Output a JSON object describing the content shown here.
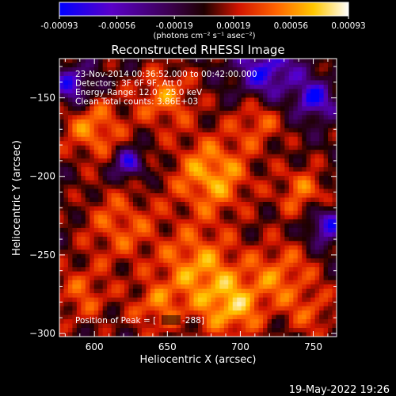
{
  "chart_data": {
    "type": "heatmap",
    "title": "Reconstructed RHESSI Image",
    "xlabel": "Heliocentric X (arcsec)",
    "ylabel": "Heliocentric Y (arcsec)",
    "xlim": [
      576,
      766
    ],
    "ylim": [
      -302,
      -125
    ],
    "x_ticks": [
      600,
      650,
      700,
      750
    ],
    "y_ticks": [
      -150,
      -200,
      -250,
      -300
    ],
    "x_tick_labels": [
      "600",
      "650",
      "700",
      "750"
    ],
    "y_tick_labels": [
      "−150",
      "−200",
      "−250",
      "−300"
    ],
    "colorbar": {
      "min": -0.00093,
      "max": 0.00093,
      "tick_values": [
        -0.00093,
        -0.00056,
        -0.00019,
        0.00019,
        0.00056,
        0.00093
      ],
      "tick_labels": [
        "-0.00093",
        "-0.00056",
        "-0.00019",
        "0.00019",
        "0.00056",
        "0.00093"
      ],
      "units_label": "(photons cm⁻² s⁻¹ asec⁻²)",
      "colormap": [
        "#0000ff",
        "#5a00c8",
        "#3c0050",
        "#1e0000",
        "#d21400",
        "#ff6400",
        "#ffc800",
        "#ffffff"
      ]
    },
    "annotations": [
      "23-Nov-2014 00:36:52.000 to 00:42:00.000",
      "Detectors: 3F 6F 9F, Att 0",
      "Energy Range: 12.0 - 25.0 keV",
      "Clean    Total counts: 3.86E+03"
    ],
    "peak_label": "Position of Peak = [",
    "peak_value": "-288]",
    "grid": false
  },
  "footer": {
    "timestamp": "19-May-2022 19:26"
  }
}
